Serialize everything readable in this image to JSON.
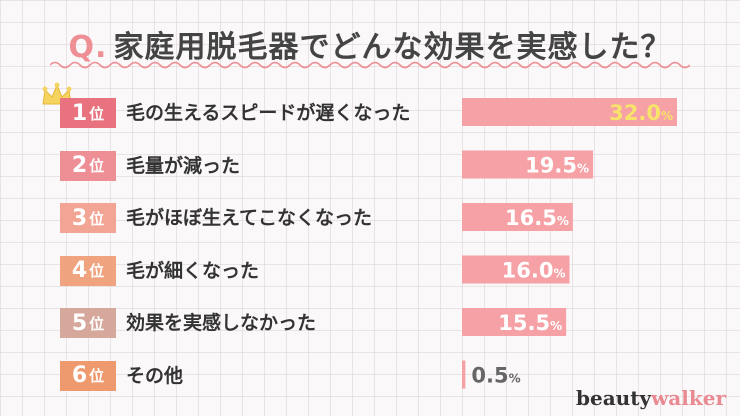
{
  "title": {
    "prefix": "Q.",
    "text": "家庭用脱毛器でどんな効果を実感した？"
  },
  "colors": {
    "accent": "#ee8f95",
    "bar": "#f5a1a5",
    "bar_value_text": "#ffffff",
    "first_value_text": "#f7e36b",
    "small_value_text": "#666666"
  },
  "rank_suffix": "位",
  "crown_icon": "crown-icon",
  "chart_data": {
    "type": "bar",
    "orientation": "horizontal",
    "categories": [
      "毛の生えるスピードが遅くなった",
      "毛量が減った",
      "毛がほぼ生えてこなくなった",
      "毛が細くなった",
      "効果を実感しなかった",
      "その他"
    ],
    "ranks": [
      "1",
      "2",
      "3",
      "4",
      "5",
      "6"
    ],
    "rank_colors": [
      "#e8737e",
      "#ee8f95",
      "#f2a594",
      "#f0a37f",
      "#d6a89b",
      "#ee9a6e"
    ],
    "values": [
      32.0,
      19.5,
      16.5,
      16.0,
      15.5,
      0.5
    ],
    "value_labels": [
      "32.0",
      "19.5",
      "16.5",
      "16.0",
      "15.5",
      "0.5"
    ],
    "unit": "%",
    "xlim": [
      0,
      32.0
    ]
  },
  "logo": {
    "part1": "beauty",
    "part2": "walker"
  }
}
